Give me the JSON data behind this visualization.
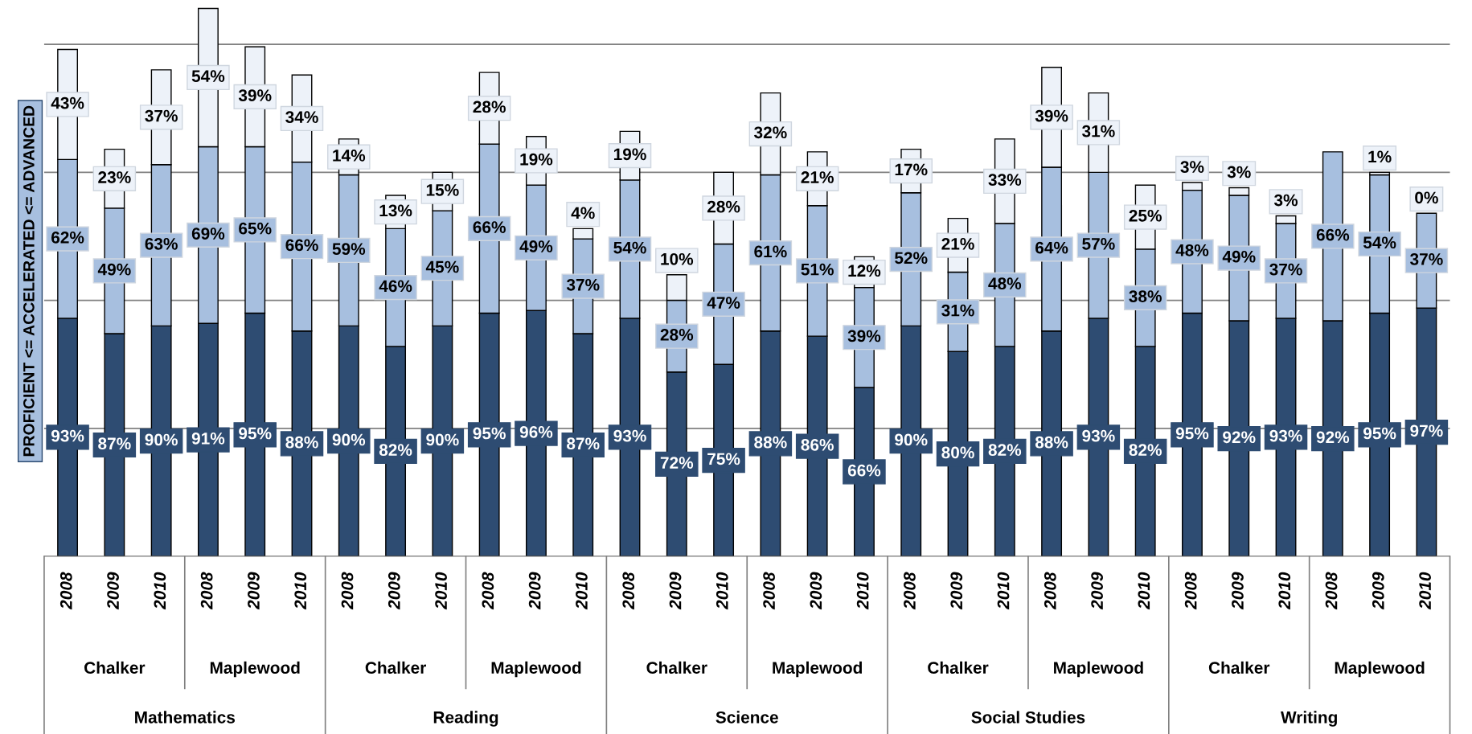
{
  "chart_data": {
    "type": "bar",
    "stacked": true,
    "ylabel": "PROFICIENT <= ACCELERATED <= ADVANCED",
    "categories": [
      "2008",
      "2009",
      "2010",
      "2008",
      "2009",
      "2010",
      "2008",
      "2009",
      "2010",
      "2008",
      "2009",
      "2010",
      "2008",
      "2009",
      "2010",
      "2008",
      "2009",
      "2010",
      "2008",
      "2009",
      "2010",
      "2008",
      "2009",
      "2010",
      "2008",
      "2009",
      "2010",
      "2008",
      "2009",
      "2010"
    ],
    "series": [
      {
        "color": "#2e4c72",
        "values": [
          93,
          87,
          90,
          91,
          95,
          88,
          90,
          82,
          90,
          95,
          96,
          87,
          93,
          72,
          75,
          88,
          86,
          66,
          90,
          80,
          82,
          88,
          93,
          82,
          95,
          92,
          93,
          92,
          95,
          97
        ],
        "value_labels": [
          "93%",
          "87%",
          "90%",
          "91%",
          "95%",
          "88%",
          "90%",
          "82%",
          "90%",
          "95%",
          "96%",
          "87%",
          "93%",
          "72%",
          "75%",
          "88%",
          "86%",
          "66%",
          "90%",
          "80%",
          "82%",
          "88%",
          "93%",
          "82%",
          "95%",
          "92%",
          "93%",
          "92%",
          "95%",
          "97%"
        ]
      },
      {
        "color": "#a7bfdf",
        "values": [
          62,
          49,
          63,
          69,
          65,
          66,
          59,
          46,
          45,
          66,
          49,
          37,
          54,
          28,
          47,
          61,
          51,
          39,
          52,
          31,
          48,
          64,
          57,
          38,
          48,
          49,
          37,
          66,
          54,
          37
        ],
        "value_labels": [
          "62%",
          "49%",
          "63%",
          "69%",
          "65%",
          "66%",
          "59%",
          "46%",
          "45%",
          "66%",
          "49%",
          "37%",
          "54%",
          "28%",
          "47%",
          "61%",
          "51%",
          "39%",
          "52%",
          "31%",
          "48%",
          "64%",
          "57%",
          "38%",
          "48%",
          "49%",
          "37%",
          "66%",
          "54%",
          "37%"
        ]
      },
      {
        "color": "#edf2f9",
        "values": [
          43,
          23,
          37,
          54,
          39,
          34,
          14,
          13,
          15,
          28,
          19,
          4,
          19,
          10,
          28,
          32,
          21,
          12,
          17,
          21,
          33,
          39,
          31,
          25,
          3,
          3,
          3,
          null,
          1,
          0
        ],
        "value_labels": [
          "43%",
          "23%",
          "37%",
          "54%",
          "39%",
          "34%",
          "14%",
          "13%",
          "15%",
          "28%",
          "19%",
          "4%",
          "19%",
          "10%",
          "28%",
          "32%",
          "21%",
          "12%",
          "17%",
          "21%",
          "33%",
          "39%",
          "31%",
          "25%",
          "3%",
          "3%",
          "3%",
          null,
          "1%",
          "0%"
        ]
      }
    ],
    "ylim": [
      0,
      215
    ],
    "yticks": [
      {
        "value": 0,
        "label": null
      },
      {
        "value": 50,
        "label": null
      },
      {
        "value": 100,
        "label": null
      },
      {
        "value": 150,
        "label": null
      },
      {
        "value": 200,
        "label": null
      }
    ],
    "grid": "y",
    "tick_labels": "x",
    "annotations": [
      "Chalker",
      "Maplewood",
      "Chalker",
      "Maplewood",
      "Chalker",
      "Maplewood",
      "Chalker",
      "Maplewood",
      "Chalker",
      "Maplewood",
      "Mathematics",
      "Reading",
      "Science",
      "Social Studies",
      "Writing"
    ]
  }
}
